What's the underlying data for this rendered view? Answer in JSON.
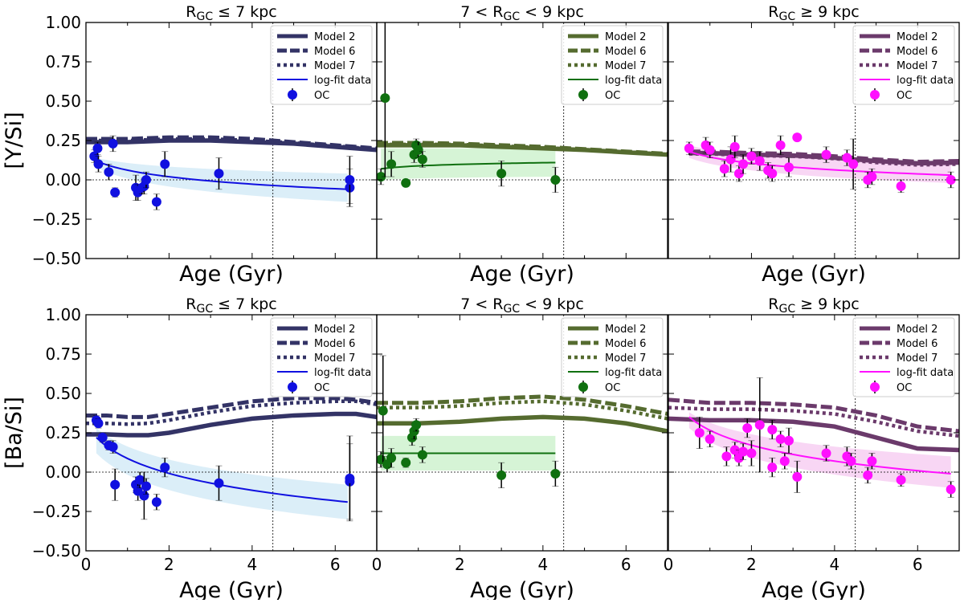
{
  "chart_data": {
    "type": "line",
    "title": "",
    "columns": [
      {
        "title_base": "R",
        "title_sub": "GC",
        "title_rest": " ≤ 7 kpc",
        "title_pre": ""
      },
      {
        "title_pre": "7 < ",
        "title_base": "R",
        "title_sub": "GC",
        "title_rest": " < 9 kpc"
      },
      {
        "title_pre": "",
        "title_base": "R",
        "title_sub": "GC",
        "title_rest": " ≥ 9 kpc"
      }
    ],
    "rows": [
      {
        "ylabel": "[Y/Si]"
      },
      {
        "ylabel": "[Ba/Si]"
      }
    ],
    "xlabel": "Age (Gyr)",
    "xlim": [
      0,
      7
    ],
    "ylim": [
      -0.5,
      1.0
    ],
    "xticks": [
      "0",
      "2",
      "4",
      "6"
    ],
    "xtick_values": [
      0,
      2,
      4,
      6
    ],
    "yticks": [
      "−0.50",
      "−0.25",
      "0.00",
      "0.25",
      "0.50",
      "0.75",
      "1.00"
    ],
    "ytick_values": [
      -0.5,
      -0.25,
      0.0,
      0.25,
      0.5,
      0.75,
      1.0
    ],
    "reference_lines": {
      "y": 0.0,
      "x": 4.5
    },
    "legend": {
      "position": "top-right",
      "entries": [
        "Model 2",
        "Model 6",
        "Model 7",
        "log-fit data",
        "OC"
      ]
    },
    "colors": {
      "inner": [
        "#1010e0",
        "#107010",
        "#ff10ff"
      ],
      "model": [
        "#333366",
        "#556b2f",
        "#6b3a6b"
      ],
      "band": [
        "#cfe8f5",
        "#c8f0c8",
        "#f5c8f0"
      ]
    },
    "panels": [
      {
        "id": "Y-inner",
        "row": 0,
        "col": 0,
        "models": {
          "x": [
            0,
            1,
            2,
            3,
            4,
            5,
            6,
            7
          ],
          "model2": [
            0.24,
            0.24,
            0.25,
            0.25,
            0.24,
            0.23,
            0.21,
            0.19
          ],
          "model6": [
            0.26,
            0.26,
            0.27,
            0.27,
            0.26,
            0.24,
            0.22,
            0.2
          ],
          "model7": [
            0.25,
            0.25,
            0.26,
            0.26,
            0.25,
            0.235,
            0.215,
            0.195
          ]
        },
        "fit": {
          "x_range": [
            0.25,
            6.3
          ],
          "y_start": 0.12,
          "y_end": -0.06
        },
        "band": {
          "upper": [
            0.14,
            0.04
          ],
          "lower": [
            0.08,
            -0.14
          ]
        },
        "points": [
          {
            "x": 0.2,
            "y": 0.15,
            "err": 0.04
          },
          {
            "x": 0.28,
            "y": 0.2,
            "err": 0.04
          },
          {
            "x": 0.3,
            "y": 0.1,
            "err": 0.05
          },
          {
            "x": 0.55,
            "y": 0.05,
            "err": 0.05
          },
          {
            "x": 0.65,
            "y": 0.23,
            "err": 0.05
          },
          {
            "x": 0.7,
            "y": -0.08,
            "err": 0.03
          },
          {
            "x": 1.2,
            "y": -0.05,
            "err": 0.08
          },
          {
            "x": 1.25,
            "y": -0.08,
            "err": 0.05
          },
          {
            "x": 1.35,
            "y": -0.05,
            "err": 0.04
          },
          {
            "x": 1.4,
            "y": -0.04,
            "err": 0.05
          },
          {
            "x": 1.45,
            "y": 0.0,
            "err": 0.05
          },
          {
            "x": 1.7,
            "y": -0.14,
            "err": 0.05
          },
          {
            "x": 1.9,
            "y": 0.1,
            "err": 0.08
          },
          {
            "x": 3.2,
            "y": 0.04,
            "err": 0.1
          },
          {
            "x": 6.35,
            "y": -0.05,
            "err": 0.12
          },
          {
            "x": 6.35,
            "y": 0.0,
            "err": 0.15
          }
        ]
      },
      {
        "id": "Y-solar",
        "row": 0,
        "col": 1,
        "models": {
          "x": [
            0,
            1,
            2,
            3,
            4,
            5,
            6,
            7
          ],
          "model2": [
            0.22,
            0.22,
            0.22,
            0.21,
            0.2,
            0.19,
            0.175,
            0.16
          ],
          "model6": [
            0.235,
            0.235,
            0.23,
            0.22,
            0.21,
            0.195,
            0.18,
            0.165
          ],
          "model7": [
            0.225,
            0.225,
            0.225,
            0.215,
            0.205,
            0.19,
            0.178,
            0.162
          ]
        },
        "fit": {
          "x_range": [
            0.1,
            4.3
          ],
          "y_start": 0.07,
          "y_end": 0.11
        },
        "band": {
          "upper": [
            0.2,
            0.2
          ],
          "lower": [
            0.0,
            0.02
          ]
        },
        "points": [
          {
            "x": 0.1,
            "y": 0.02,
            "err": 0.05
          },
          {
            "x": 0.2,
            "y": 0.52,
            "err": 0.5
          },
          {
            "x": 0.35,
            "y": 0.1,
            "err": 0.08
          },
          {
            "x": 0.7,
            "y": -0.02,
            "err": 0.02
          },
          {
            "x": 0.9,
            "y": 0.16,
            "err": 0.05
          },
          {
            "x": 0.95,
            "y": 0.22,
            "err": 0.04
          },
          {
            "x": 1.0,
            "y": 0.19,
            "err": 0.05
          },
          {
            "x": 1.1,
            "y": 0.13,
            "err": 0.05
          },
          {
            "x": 3.0,
            "y": 0.04,
            "err": 0.08
          },
          {
            "x": 4.3,
            "y": 0.0,
            "err": 0.08
          }
        ]
      },
      {
        "id": "Y-outer",
        "row": 0,
        "col": 2,
        "models": {
          "x": [
            0.5,
            1,
            2,
            3,
            4,
            5,
            6,
            7
          ],
          "model2": [
            0.17,
            0.17,
            0.16,
            0.155,
            0.14,
            0.12,
            0.105,
            0.11
          ],
          "model6": [
            0.18,
            0.18,
            0.17,
            0.165,
            0.15,
            0.13,
            0.115,
            0.12
          ],
          "model7": [
            0.165,
            0.165,
            0.155,
            0.15,
            0.135,
            0.11,
            0.095,
            0.1
          ]
        },
        "fit": {
          "x_range": [
            0.5,
            6.8
          ],
          "y_start": 0.18,
          "y_end": 0.03
        },
        "band": {
          "upper": [
            0.22,
            0.1
          ],
          "lower": [
            0.14,
            -0.02
          ]
        },
        "points": [
          {
            "x": 0.5,
            "y": 0.2,
            "err": 0.04
          },
          {
            "x": 0.9,
            "y": 0.22,
            "err": 0.05
          },
          {
            "x": 1.0,
            "y": 0.19,
            "err": 0.05
          },
          {
            "x": 1.35,
            "y": 0.07,
            "err": 0.05
          },
          {
            "x": 1.5,
            "y": 0.13,
            "err": 0.08
          },
          {
            "x": 1.6,
            "y": 0.21,
            "err": 0.07
          },
          {
            "x": 1.7,
            "y": 0.04,
            "err": 0.05
          },
          {
            "x": 1.8,
            "y": 0.1,
            "err": 0.06
          },
          {
            "x": 2.0,
            "y": 0.15,
            "err": 0.05
          },
          {
            "x": 2.2,
            "y": 0.12,
            "err": 0.06
          },
          {
            "x": 2.4,
            "y": 0.06,
            "err": 0.05
          },
          {
            "x": 2.5,
            "y": 0.04,
            "err": 0.05
          },
          {
            "x": 2.7,
            "y": 0.22,
            "err": 0.06
          },
          {
            "x": 2.9,
            "y": 0.08,
            "err": 0.06
          },
          {
            "x": 3.1,
            "y": 0.27,
            "err": 0.02
          },
          {
            "x": 3.8,
            "y": 0.16,
            "err": 0.05
          },
          {
            "x": 4.3,
            "y": 0.14,
            "err": 0.05
          },
          {
            "x": 4.45,
            "y": 0.1,
            "err": 0.16
          },
          {
            "x": 4.8,
            "y": 0.0,
            "err": 0.05
          },
          {
            "x": 4.9,
            "y": 0.02,
            "err": 0.05
          },
          {
            "x": 5.6,
            "y": -0.04,
            "err": 0.04
          },
          {
            "x": 6.8,
            "y": 0.0,
            "err": 0.05
          }
        ]
      },
      {
        "id": "Ba-inner",
        "row": 1,
        "col": 0,
        "models": {
          "x": [
            0,
            0.5,
            1,
            1.5,
            2,
            3,
            4,
            5,
            6,
            6.5,
            7
          ],
          "model2": [
            0.24,
            0.24,
            0.235,
            0.235,
            0.25,
            0.3,
            0.34,
            0.36,
            0.37,
            0.37,
            0.35
          ],
          "model6": [
            0.36,
            0.36,
            0.35,
            0.35,
            0.37,
            0.41,
            0.45,
            0.47,
            0.47,
            0.46,
            0.44
          ],
          "model7": [
            0.31,
            0.31,
            0.305,
            0.31,
            0.33,
            0.38,
            0.42,
            0.44,
            0.45,
            0.45,
            0.43
          ]
        },
        "fit": {
          "x_range": [
            0.25,
            6.3
          ],
          "y_start": 0.22,
          "y_end": -0.19
        },
        "band": {
          "upper": [
            0.28,
            -0.08
          ],
          "lower": [
            0.12,
            -0.3
          ]
        },
        "points": [
          {
            "x": 0.25,
            "y": 0.33,
            "err": 0.03
          },
          {
            "x": 0.3,
            "y": 0.31,
            "err": 0.03
          },
          {
            "x": 0.4,
            "y": 0.22,
            "err": 0.03
          },
          {
            "x": 0.55,
            "y": 0.17,
            "err": 0.03
          },
          {
            "x": 0.65,
            "y": 0.16,
            "err": 0.04
          },
          {
            "x": 0.7,
            "y": -0.08,
            "err": 0.1
          },
          {
            "x": 1.2,
            "y": -0.08,
            "err": 0.05
          },
          {
            "x": 1.25,
            "y": -0.12,
            "err": 0.06
          },
          {
            "x": 1.3,
            "y": -0.05,
            "err": 0.05
          },
          {
            "x": 1.4,
            "y": -0.15,
            "err": 0.15
          },
          {
            "x": 1.45,
            "y": -0.09,
            "err": 0.05
          },
          {
            "x": 1.7,
            "y": -0.19,
            "err": 0.05
          },
          {
            "x": 1.9,
            "y": 0.03,
            "err": 0.06
          },
          {
            "x": 3.2,
            "y": -0.07,
            "err": 0.11
          },
          {
            "x": 6.35,
            "y": -0.06,
            "err": 0.24
          },
          {
            "x": 6.35,
            "y": -0.04,
            "err": 0.27
          }
        ]
      },
      {
        "id": "Ba-solar",
        "row": 1,
        "col": 1,
        "models": {
          "x": [
            0,
            0.5,
            1,
            2,
            3,
            4,
            5,
            6,
            7
          ],
          "model2": [
            0.31,
            0.31,
            0.31,
            0.32,
            0.34,
            0.35,
            0.34,
            0.31,
            0.26
          ],
          "model6": [
            0.44,
            0.44,
            0.44,
            0.45,
            0.47,
            0.48,
            0.46,
            0.42,
            0.37
          ],
          "model7": [
            0.41,
            0.41,
            0.41,
            0.42,
            0.44,
            0.45,
            0.43,
            0.39,
            0.34
          ]
        },
        "fit": {
          "x_range": [
            0.1,
            4.3
          ],
          "y_start": 0.12,
          "y_end": 0.12
        },
        "band": {
          "upper": [
            0.23,
            0.23
          ],
          "lower": [
            0.01,
            0.01
          ]
        },
        "points": [
          {
            "x": 0.1,
            "y": 0.08,
            "err": 0.05
          },
          {
            "x": 0.15,
            "y": 0.39,
            "err": 0.35
          },
          {
            "x": 0.25,
            "y": 0.05,
            "err": 0.05
          },
          {
            "x": 0.35,
            "y": 0.09,
            "err": 0.06
          },
          {
            "x": 0.7,
            "y": 0.06,
            "err": 0.03
          },
          {
            "x": 0.85,
            "y": 0.22,
            "err": 0.05
          },
          {
            "x": 0.9,
            "y": 0.26,
            "err": 0.05
          },
          {
            "x": 0.95,
            "y": 0.3,
            "err": 0.04
          },
          {
            "x": 1.1,
            "y": 0.11,
            "err": 0.05
          },
          {
            "x": 3.0,
            "y": -0.02,
            "err": 0.08
          },
          {
            "x": 4.3,
            "y": -0.01,
            "err": 0.08
          }
        ]
      },
      {
        "id": "Ba-outer",
        "row": 1,
        "col": 2,
        "models": {
          "x": [
            0,
            1,
            2,
            3,
            4,
            5,
            6,
            7
          ],
          "model2": [
            0.34,
            0.33,
            0.33,
            0.32,
            0.29,
            0.22,
            0.15,
            0.14
          ],
          "model6": [
            0.46,
            0.44,
            0.44,
            0.43,
            0.41,
            0.36,
            0.29,
            0.26
          ],
          "model7": [
            0.41,
            0.4,
            0.4,
            0.39,
            0.37,
            0.32,
            0.26,
            0.23
          ]
        },
        "fit": {
          "x_range": [
            0.5,
            6.8
          ],
          "y_start": 0.35,
          "y_end": -0.01
        },
        "band": {
          "upper": [
            0.38,
            0.1
          ],
          "lower": [
            0.28,
            -0.1
          ]
        },
        "points": [
          {
            "x": 0.75,
            "y": 0.25,
            "err": 0.1
          },
          {
            "x": 1.0,
            "y": 0.21,
            "err": 0.05
          },
          {
            "x": 1.4,
            "y": 0.1,
            "err": 0.06
          },
          {
            "x": 1.6,
            "y": 0.14,
            "err": 0.05
          },
          {
            "x": 1.7,
            "y": 0.09,
            "err": 0.05
          },
          {
            "x": 1.8,
            "y": 0.13,
            "err": 0.05
          },
          {
            "x": 1.9,
            "y": 0.28,
            "err": 0.06
          },
          {
            "x": 2.0,
            "y": 0.12,
            "err": 0.08
          },
          {
            "x": 2.2,
            "y": 0.3,
            "err": 0.3
          },
          {
            "x": 2.5,
            "y": 0.03,
            "err": 0.06
          },
          {
            "x": 2.5,
            "y": 0.27,
            "err": 0.06
          },
          {
            "x": 2.7,
            "y": 0.21,
            "err": 0.05
          },
          {
            "x": 2.8,
            "y": 0.07,
            "err": 0.05
          },
          {
            "x": 2.9,
            "y": 0.2,
            "err": 0.08
          },
          {
            "x": 3.1,
            "y": -0.03,
            "err": 0.1
          },
          {
            "x": 3.8,
            "y": 0.12,
            "err": 0.05
          },
          {
            "x": 4.3,
            "y": 0.1,
            "err": 0.06
          },
          {
            "x": 4.4,
            "y": 0.07,
            "err": 0.05
          },
          {
            "x": 4.8,
            "y": -0.02,
            "err": 0.05
          },
          {
            "x": 4.9,
            "y": 0.07,
            "err": 0.05
          },
          {
            "x": 5.6,
            "y": -0.05,
            "err": 0.04
          },
          {
            "x": 6.8,
            "y": -0.11,
            "err": 0.05
          }
        ]
      }
    ]
  }
}
